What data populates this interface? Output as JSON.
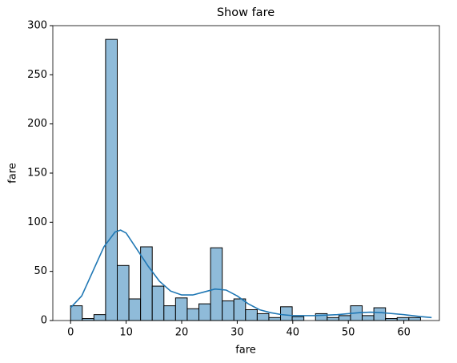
{
  "chart_data": {
    "type": "histogram",
    "title": "Show fare",
    "x_label": "fare",
    "y_label": "fare",
    "bins": [
      0,
      2.1,
      4.2,
      6.3,
      8.4,
      10.5,
      12.6,
      14.7,
      16.8,
      18.9,
      21,
      23.1,
      25.2,
      27.3,
      29.4,
      31.5,
      33.6,
      35.7,
      37.8,
      39.9,
      42,
      44.1,
      46.2,
      48.3,
      50.4,
      52.5,
      54.6,
      56.7,
      58.8,
      60.9,
      63
    ],
    "values": [
      15,
      2,
      6,
      286,
      56,
      22,
      75,
      35,
      15,
      23,
      12,
      17,
      74,
      20,
      22,
      11,
      7,
      3,
      14,
      4,
      0,
      7,
      3,
      5,
      15,
      5,
      13,
      2,
      3,
      3
    ],
    "color": "#8fbbd9",
    "edge_color": "#000000",
    "kde": {
      "color": "#1f77b4",
      "x": [
        0,
        2,
        4,
        6,
        8,
        9,
        10,
        12,
        14,
        16,
        18,
        20,
        22,
        24,
        26,
        28,
        30,
        32,
        34,
        36,
        38,
        40,
        44,
        48,
        52,
        54,
        56,
        60,
        63,
        65
      ],
      "values": [
        13,
        25,
        50,
        75,
        90,
        92,
        89,
        72,
        55,
        40,
        30,
        26,
        26,
        29,
        32,
        31,
        25,
        17,
        11,
        8,
        6,
        5,
        5,
        6,
        8,
        8.5,
        8,
        6,
        4,
        3
      ]
    },
    "xlim": [
      -3.2,
      66.4
    ],
    "ylim": [
      0,
      300
    ],
    "xticks": [
      0,
      10,
      20,
      30,
      40,
      50,
      60
    ],
    "yticks": [
      0,
      50,
      100,
      150,
      200,
      250,
      300
    ]
  }
}
